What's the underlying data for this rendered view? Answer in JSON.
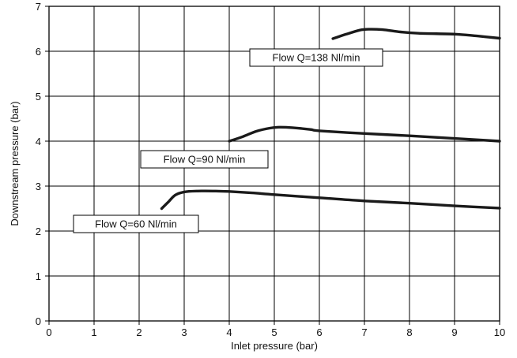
{
  "chart_data": {
    "type": "line",
    "xlabel": "Inlet pressure (bar)",
    "ylabel": "Downstream pressure (bar)",
    "xlim": [
      0,
      10
    ],
    "ylim": [
      0,
      7
    ],
    "xticks": [
      0,
      1,
      2,
      3,
      4,
      5,
      6,
      7,
      8,
      9,
      10
    ],
    "yticks": [
      0,
      1,
      2,
      3,
      4,
      5,
      6,
      7
    ],
    "grid": true,
    "series": [
      {
        "name": "Flow Q=60 Nl/min",
        "x": [
          2.5,
          2.65,
          2.8,
          3.0,
          3.3,
          3.7,
          4.0,
          4.5,
          5.0,
          6.0,
          7.0,
          8.0,
          9.0,
          10.0
        ],
        "y": [
          2.5,
          2.65,
          2.8,
          2.87,
          2.89,
          2.89,
          2.88,
          2.85,
          2.81,
          2.74,
          2.67,
          2.62,
          2.56,
          2.51
        ]
      },
      {
        "name": "Flow Q=90 Nl/min",
        "x": [
          4.0,
          4.3,
          4.6,
          4.9,
          5.1,
          5.4,
          5.8,
          6.0,
          7.0,
          8.0,
          9.0,
          10.0
        ],
        "y": [
          4.0,
          4.1,
          4.22,
          4.29,
          4.31,
          4.3,
          4.26,
          4.23,
          4.17,
          4.12,
          4.06,
          4.0
        ]
      },
      {
        "name": "Flow Q=138 Nl/min",
        "x": [
          6.3,
          6.6,
          6.9,
          7.1,
          7.4,
          7.8,
          8.2,
          9.0,
          9.5,
          10.0
        ],
        "y": [
          6.28,
          6.38,
          6.47,
          6.49,
          6.48,
          6.43,
          6.4,
          6.38,
          6.34,
          6.29
        ]
      }
    ],
    "annotations": [
      {
        "text": "Flow Q=138 Nl/min",
        "series": 2
      },
      {
        "text": "Flow Q=90 Nl/min",
        "series": 1
      },
      {
        "text": "Flow Q=60 Nl/min",
        "series": 0
      }
    ]
  }
}
